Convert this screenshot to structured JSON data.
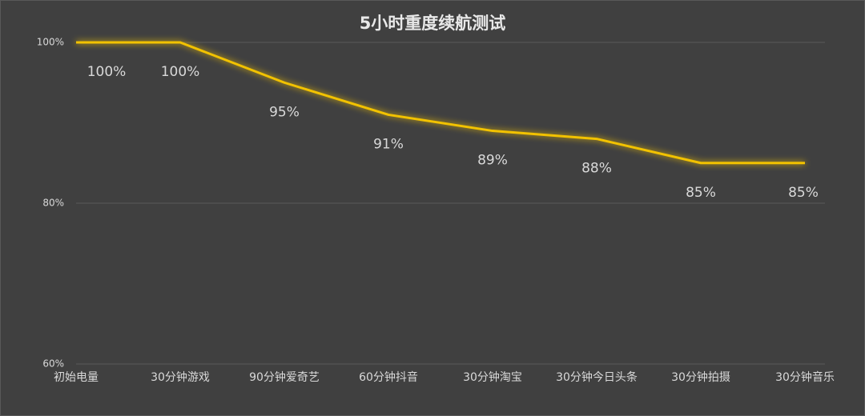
{
  "chart_data": {
    "type": "line",
    "title": "5小时重度续航测试",
    "categories": [
      "初始电量",
      "30分钟游戏",
      "90分钟爱奇艺",
      "60分钟抖音",
      "30分钟淘宝",
      "30分钟今日头条",
      "30分钟拍摄",
      "30分钟音乐"
    ],
    "values": [
      100,
      100,
      95,
      91,
      89,
      88,
      85,
      85
    ],
    "value_labels": [
      "100%",
      "100%",
      "95%",
      "91%",
      "89%",
      "88%",
      "85%",
      "85%"
    ],
    "color": "#f2c200",
    "ylim": [
      60,
      100
    ],
    "yticks": [
      {
        "value": 60,
        "label": "60%"
      },
      {
        "value": 80,
        "label": "80%"
      },
      {
        "value": 100,
        "label": "100%"
      }
    ],
    "grid": true
  }
}
